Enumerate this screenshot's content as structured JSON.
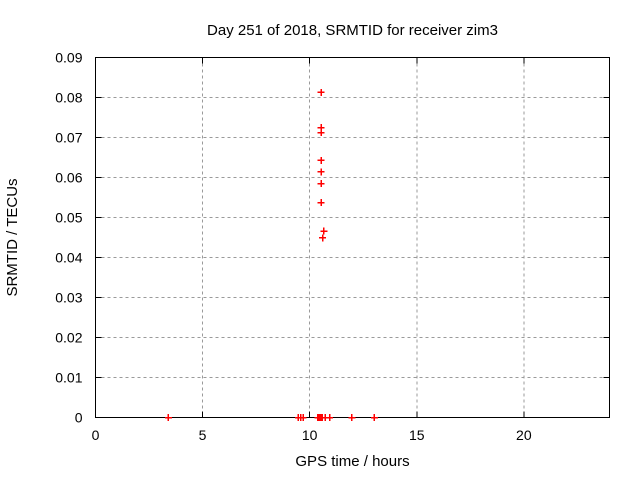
{
  "chart_data": {
    "type": "scatter",
    "title": "Day 251 of 2018, SRMTID for receiver zim3",
    "xlabel": "GPS time / hours",
    "ylabel": "SRMTID / TECUs",
    "xlim": [
      0,
      24
    ],
    "ylim": [
      0,
      0.09
    ],
    "xticks": {
      "values": [
        0,
        5,
        10,
        15,
        20
      ],
      "labels": [
        "0",
        "5",
        "10",
        "15",
        "20"
      ]
    },
    "yticks": {
      "values": [
        0,
        0.01,
        0.02,
        0.03,
        0.04,
        0.05,
        0.06,
        0.07,
        0.08,
        0.09
      ],
      "labels": [
        "0",
        "0.01",
        "0.02",
        "0.03",
        "0.04",
        "0.05",
        "0.06",
        "0.07",
        "0.08",
        "0.09"
      ]
    },
    "grid": true,
    "legend": "none",
    "marker": "plus",
    "marker_color": "#ff0000",
    "grid_color": "#9a9a9a",
    "axis_color": "#000000",
    "background_color": "#ffffff",
    "points": [
      [
        10.54,
        0.0813
      ],
      [
        10.54,
        0.0725
      ],
      [
        10.54,
        0.0712
      ],
      [
        10.54,
        0.0643
      ],
      [
        10.54,
        0.0614
      ],
      [
        10.53,
        0.0585
      ],
      [
        10.53,
        0.0537
      ],
      [
        10.66,
        0.0466
      ],
      [
        10.6,
        0.0449
      ],
      [
        3.4,
        0
      ],
      [
        9.47,
        0
      ],
      [
        9.58,
        0
      ],
      [
        9.7,
        0
      ],
      [
        10.38,
        0
      ],
      [
        10.45,
        0
      ],
      [
        10.52,
        0
      ],
      [
        10.58,
        0
      ],
      [
        10.72,
        0
      ],
      [
        10.93,
        0
      ],
      [
        11.97,
        0
      ],
      [
        13.02,
        0
      ]
    ]
  }
}
